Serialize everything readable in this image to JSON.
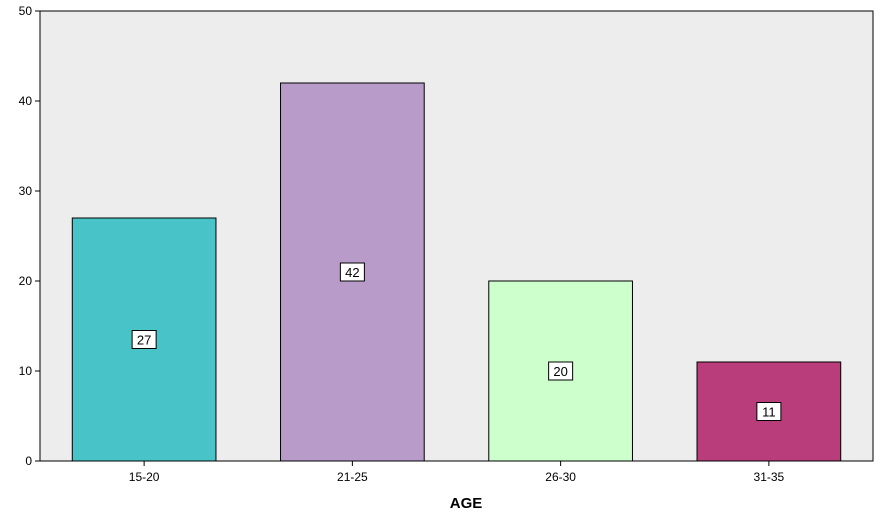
{
  "chart_data": {
    "type": "bar",
    "categories": [
      "15-20",
      "21-25",
      "26-30",
      "31-35"
    ],
    "values": [
      27,
      42,
      20,
      11
    ],
    "data_labels": [
      "27",
      "42",
      "20",
      "11"
    ],
    "colors": [
      "#48c3c8",
      "#b89bc9",
      "#ccffcc",
      "#b83d7a"
    ],
    "plot_background": "#ededed",
    "title": "",
    "xlabel": "AGE",
    "ylabel": "",
    "ylim": [
      0,
      50
    ],
    "yticks": [
      "0",
      "10",
      "20",
      "30",
      "40",
      "50"
    ],
    "grid": false,
    "legend": "none"
  }
}
